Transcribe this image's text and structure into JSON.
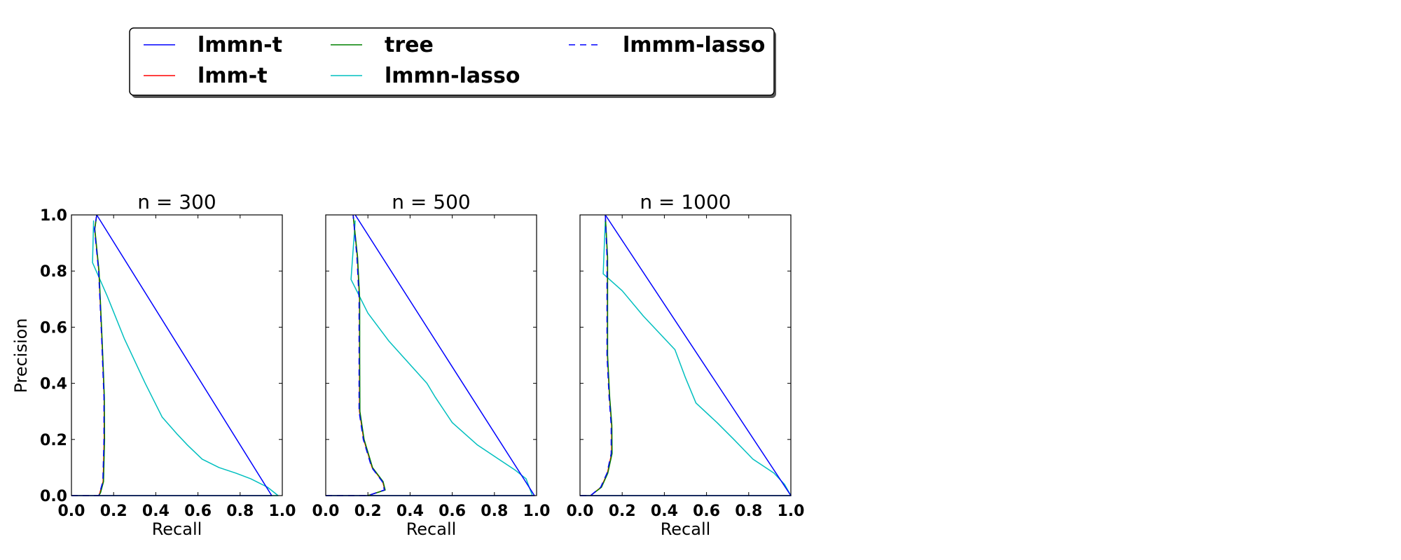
{
  "chart_data": {
    "type": "line",
    "legend": {
      "placement": "top-left",
      "entries": [
        {
          "name": "lmmn-t",
          "color": "#0000ff",
          "dash": "solid"
        },
        {
          "name": "lmm-t",
          "color": "#ff0000",
          "dash": "solid"
        },
        {
          "name": "tree",
          "color": "#008000",
          "dash": "solid"
        },
        {
          "name": "lmmn-lasso",
          "color": "#00bfbf",
          "dash": "solid"
        },
        {
          "name": "lmmm-lasso",
          "color": "#0000ff",
          "dash": "dashed"
        }
      ]
    },
    "xlabel": "Recall",
    "ylabel": "Precision",
    "xlim": [
      0,
      1
    ],
    "ylim": [
      0,
      1
    ],
    "x_ticks": [
      "0.0",
      "0.2",
      "0.4",
      "0.6",
      "0.8",
      "1.0"
    ],
    "y_ticks": [
      "0.0",
      "0.2",
      "0.4",
      "0.6",
      "0.8",
      "1.0"
    ],
    "grid": false,
    "panels": [
      {
        "title": "n = 300",
        "series": [
          {
            "name": "lmm-t",
            "x": [
              0.13,
              0.135,
              0.15,
              0.155,
              0.155,
              0.15,
              0.145,
              0.13,
              0.11,
              0.12
            ],
            "y": [
              0.0,
              0.01,
              0.05,
              0.2,
              0.35,
              0.45,
              0.55,
              0.8,
              0.95,
              1.0
            ]
          },
          {
            "name": "tree",
            "x": [
              0.13,
              0.138,
              0.152,
              0.157,
              0.156,
              0.151,
              0.146,
              0.131,
              0.111,
              0.12
            ],
            "y": [
              0.0,
              0.01,
              0.05,
              0.2,
              0.35,
              0.45,
              0.55,
              0.8,
              0.95,
              1.0
            ]
          },
          {
            "name": "lmmm-lasso",
            "x": [
              0.0,
              0.12,
              0.13,
              0.134,
              0.149,
              0.154,
              0.154,
              0.149,
              0.144,
              0.129,
              0.109,
              0.12
            ],
            "y": [
              0.0,
              0.0,
              0.0,
              0.01,
              0.05,
              0.2,
              0.35,
              0.45,
              0.55,
              0.8,
              0.95,
              1.0
            ]
          },
          {
            "name": "lmmn-t",
            "x": [
              0.0,
              0.95,
              0.12
            ],
            "y": [
              0.0,
              0.0,
              1.0
            ]
          },
          {
            "name": "lmmn-lasso",
            "x": [
              0.0,
              0.98,
              0.93,
              0.85,
              0.78,
              0.7,
              0.62,
              0.55,
              0.5,
              0.43,
              0.35,
              0.25,
              0.17,
              0.1,
              0.105
            ],
            "y": [
              0.0,
              0.0,
              0.03,
              0.06,
              0.08,
              0.1,
              0.13,
              0.18,
              0.22,
              0.28,
              0.4,
              0.56,
              0.71,
              0.83,
              0.98
            ]
          }
        ]
      },
      {
        "title": "n = 500",
        "series": [
          {
            "name": "lmm-t",
            "x": [
              0.2,
              0.28,
              0.27,
              0.22,
              0.18,
              0.16,
              0.16,
              0.16,
              0.15,
              0.13
            ],
            "y": [
              0.0,
              0.02,
              0.05,
              0.1,
              0.2,
              0.3,
              0.5,
              0.7,
              0.85,
              1.0
            ]
          },
          {
            "name": "tree",
            "x": [
              0.2,
              0.282,
              0.272,
              0.222,
              0.182,
              0.162,
              0.161,
              0.161,
              0.151,
              0.13
            ],
            "y": [
              0.0,
              0.02,
              0.05,
              0.1,
              0.2,
              0.3,
              0.5,
              0.7,
              0.85,
              1.0
            ]
          },
          {
            "name": "lmmm-lasso",
            "x": [
              0.0,
              0.2,
              0.278,
              0.268,
              0.218,
              0.178,
              0.158,
              0.158,
              0.158,
              0.148,
              0.13
            ],
            "y": [
              0.0,
              0.0,
              0.02,
              0.05,
              0.1,
              0.2,
              0.3,
              0.5,
              0.7,
              0.85,
              1.0
            ]
          },
          {
            "name": "lmmn-t",
            "x": [
              0.0,
              0.99,
              0.14
            ],
            "y": [
              0.0,
              0.0,
              1.0
            ]
          },
          {
            "name": "lmmn-lasso",
            "x": [
              0.0,
              0.98,
              0.95,
              0.9,
              0.82,
              0.72,
              0.6,
              0.52,
              0.48,
              0.42,
              0.3,
              0.2,
              0.12,
              0.14
            ],
            "y": [
              0.0,
              0.0,
              0.06,
              0.09,
              0.13,
              0.18,
              0.26,
              0.35,
              0.4,
              0.45,
              0.55,
              0.65,
              0.77,
              0.98
            ]
          }
        ]
      },
      {
        "title": "n = 1000",
        "series": [
          {
            "name": "lmm-t",
            "x": [
              0.05,
              0.1,
              0.13,
              0.15,
              0.15,
              0.14,
              0.13,
              0.13,
              0.13,
              0.12
            ],
            "y": [
              0.0,
              0.03,
              0.08,
              0.15,
              0.25,
              0.35,
              0.5,
              0.7,
              0.85,
              1.0
            ]
          },
          {
            "name": "tree",
            "x": [
              0.05,
              0.102,
              0.132,
              0.152,
              0.151,
              0.141,
              0.131,
              0.131,
              0.131,
              0.12
            ],
            "y": [
              0.0,
              0.03,
              0.08,
              0.15,
              0.25,
              0.35,
              0.5,
              0.7,
              0.85,
              1.0
            ]
          },
          {
            "name": "lmmm-lasso",
            "x": [
              0.0,
              0.05,
              0.098,
              0.128,
              0.148,
              0.148,
              0.138,
              0.128,
              0.128,
              0.128,
              0.12
            ],
            "y": [
              0.0,
              0.0,
              0.03,
              0.08,
              0.15,
              0.25,
              0.35,
              0.5,
              0.7,
              0.85,
              1.0
            ]
          },
          {
            "name": "lmmn-t",
            "x": [
              0.0,
              1.0,
              0.12
            ],
            "y": [
              0.0,
              0.0,
              1.0
            ]
          },
          {
            "name": "lmmn-lasso",
            "x": [
              0.0,
              1.0,
              0.97,
              0.92,
              0.82,
              0.73,
              0.65,
              0.55,
              0.5,
              0.45,
              0.3,
              0.2,
              0.11,
              0.12
            ],
            "y": [
              0.0,
              0.0,
              0.04,
              0.08,
              0.13,
              0.2,
              0.26,
              0.33,
              0.42,
              0.52,
              0.64,
              0.73,
              0.79,
              0.98
            ]
          }
        ]
      }
    ]
  }
}
